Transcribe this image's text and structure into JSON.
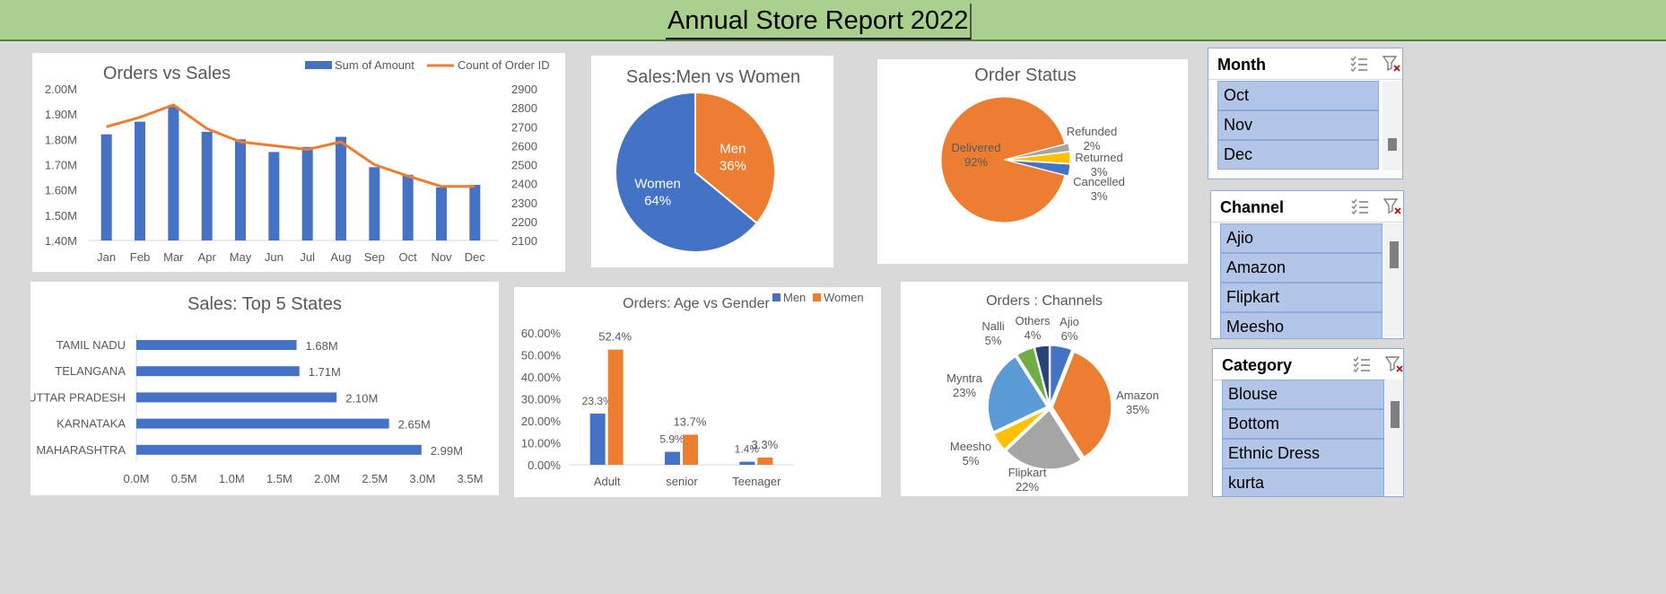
{
  "report": {
    "title": "Annual Store Report 2022"
  },
  "chart_data": [
    {
      "id": "orders-vs-sales",
      "type": "bar",
      "title": "Orders vs Sales",
      "categories": [
        "Jan",
        "Feb",
        "Mar",
        "Apr",
        "May",
        "Jun",
        "Jul",
        "Aug",
        "Sep",
        "Oct",
        "Nov",
        "Dec"
      ],
      "series": [
        {
          "name": "Sum of Amount",
          "kind": "bar",
          "axis": "left",
          "color": "#4472c4",
          "values": [
            1.82,
            1.87,
            1.93,
            1.83,
            1.8,
            1.75,
            1.77,
            1.81,
            1.69,
            1.66,
            1.61,
            1.62
          ]
        },
        {
          "name": "Count of Order ID",
          "kind": "line",
          "axis": "right",
          "color": "#ed7d31",
          "values": [
            2700,
            2750,
            2815,
            2690,
            2620,
            2600,
            2580,
            2620,
            2500,
            2440,
            2385,
            2385
          ]
        }
      ],
      "y_left": {
        "min": 1.4,
        "max": 2.0,
        "ticks": [
          "1.40M",
          "1.50M",
          "1.60M",
          "1.70M",
          "1.80M",
          "1.90M",
          "2.00M"
        ]
      },
      "y_right": {
        "min": 2100,
        "max": 2900,
        "ticks": [
          "2100",
          "2200",
          "2300",
          "2400",
          "2500",
          "2600",
          "2700",
          "2800",
          "2900"
        ]
      },
      "legend": "top-right"
    },
    {
      "id": "sales-men-women",
      "type": "pie",
      "title": "Sales:Men vs Women",
      "slices": [
        {
          "label": "Men",
          "value": 36,
          "pct": "36%",
          "color": "#ed7d31"
        },
        {
          "label": "Women",
          "value": 64,
          "pct": "64%",
          "color": "#4472c4"
        }
      ]
    },
    {
      "id": "order-status",
      "type": "pie",
      "title": "Order Status",
      "slices": [
        {
          "label": "Delivered",
          "value": 92,
          "pct": "92%",
          "color": "#ed7d31"
        },
        {
          "label": "Refunded",
          "value": 2,
          "pct": "2%",
          "color": "#a5a5a5"
        },
        {
          "label": "Returned",
          "value": 3,
          "pct": "3%",
          "color": "#ffc000"
        },
        {
          "label": "Cancelled",
          "value": 3,
          "pct": "3%",
          "color": "#4472c4"
        }
      ]
    },
    {
      "id": "top-states",
      "type": "bar",
      "orientation": "horizontal",
      "title": "Sales: Top 5 States",
      "categories": [
        "TAMIL NADU",
        "TELANGANA",
        "UTTAR PRADESH",
        "KARNATAKA",
        "MAHARASHTRA"
      ],
      "values": [
        1.68,
        1.71,
        2.1,
        2.65,
        2.99
      ],
      "value_labels": [
        "1.68M",
        "1.71M",
        "2.10M",
        "2.65M",
        "2.99M"
      ],
      "xlim": [
        0,
        3.5
      ],
      "x_ticks": [
        "0.0M",
        "0.5M",
        "1.0M",
        "1.5M",
        "2.0M",
        "2.5M",
        "3.0M",
        "3.5M"
      ],
      "color": "#4472c4"
    },
    {
      "id": "age-gender",
      "type": "bar",
      "title": "Orders: Age vs Gender",
      "categories": [
        "Adult",
        "senior",
        "Teenager"
      ],
      "series": [
        {
          "name": "Men",
          "color": "#4472c4",
          "values": [
            23.3,
            5.9,
            1.4
          ],
          "labels": [
            "23.3%",
            "5.9%",
            "1.4%"
          ]
        },
        {
          "name": "Women",
          "color": "#ed7d31",
          "values": [
            52.4,
            13.7,
            3.3
          ],
          "labels": [
            "52.4%",
            "13.7%",
            "3.3%"
          ]
        }
      ],
      "ylim": [
        0,
        60
      ],
      "y_ticks": [
        "0.00%",
        "10.00%",
        "20.00%",
        "30.00%",
        "40.00%",
        "50.00%",
        "60.00%"
      ],
      "legend": "top-right"
    },
    {
      "id": "channels",
      "type": "pie",
      "title": "Orders : Channels",
      "slices": [
        {
          "label": "Ajio",
          "value": 6,
          "pct": "6%",
          "color": "#4472c4"
        },
        {
          "label": "Amazon",
          "value": 35,
          "pct": "35%",
          "color": "#ed7d31"
        },
        {
          "label": "Flipkart",
          "value": 22,
          "pct": "22%",
          "color": "#a5a5a5"
        },
        {
          "label": "Meesho",
          "value": 5,
          "pct": "5%",
          "color": "#ffc000"
        },
        {
          "label": "Myntra",
          "value": 23,
          "pct": "23%",
          "color": "#5b9bd5"
        },
        {
          "label": "Nalli",
          "value": 5,
          "pct": "5%",
          "color": "#70ad47"
        },
        {
          "label": "Others",
          "value": 4,
          "pct": "4%",
          "color": "#264478"
        }
      ]
    }
  ],
  "slicers": {
    "month": {
      "title": "Month",
      "items": [
        "Oct",
        "Nov",
        "Dec"
      ]
    },
    "channel": {
      "title": "Channel",
      "items": [
        "Ajio",
        "Amazon",
        "Flipkart",
        "Meesho"
      ]
    },
    "category": {
      "title": "Category",
      "items": [
        "Blouse",
        "Bottom",
        "Ethnic Dress",
        "kurta"
      ]
    }
  }
}
